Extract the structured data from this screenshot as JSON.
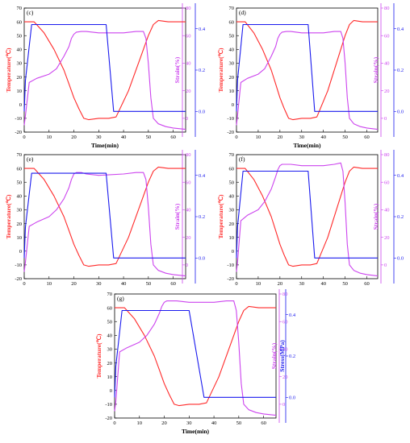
{
  "colors": {
    "temperature": "#ff2a2a",
    "strain": "#cc44ee",
    "stress": "#1a1aee",
    "axis": "#000000"
  },
  "chart_data": [
    {
      "type": "line",
      "panel_label": "(c)",
      "xlabel": "Time(min)",
      "xlim": [
        0,
        65
      ],
      "xticks": [
        0,
        10,
        20,
        30,
        40,
        50,
        60
      ],
      "axes": {
        "temperature": {
          "label": "Temperature(℃)",
          "ylim": [
            -20,
            70
          ],
          "ticks": [
            -20,
            -10,
            0,
            10,
            20,
            30,
            40,
            50,
            60,
            70
          ]
        },
        "strain": {
          "label": "Strain(%)",
          "ylim": [
            -10,
            80
          ],
          "ticks": [
            0,
            20,
            40,
            60,
            80
          ]
        },
        "stress": {
          "label": "",
          "ylim": [
            -0.1,
            0.5
          ],
          "ticks": [
            0.0,
            0.2,
            0.4
          ]
        }
      },
      "series": [
        {
          "axis": "temperature",
          "x": [
            0,
            4,
            8,
            12,
            16,
            18,
            20,
            22,
            24,
            26,
            30,
            34,
            37,
            42,
            47,
            50,
            52,
            54,
            58,
            65
          ],
          "y": [
            60,
            60,
            52,
            40,
            25,
            15,
            5,
            -3,
            -10,
            -11,
            -10,
            -10,
            -9,
            10,
            35,
            50,
            58,
            61,
            60,
            60
          ]
        },
        {
          "axis": "strain",
          "x": [
            0,
            0.5,
            2,
            5,
            10,
            13,
            16,
            18,
            19,
            20,
            21,
            23,
            25,
            30,
            40,
            45,
            48,
            49,
            50,
            51,
            52,
            54,
            57,
            60,
            65
          ],
          "y": [
            -5,
            2,
            26,
            29,
            32,
            36,
            45,
            52,
            58,
            61,
            62.5,
            63,
            63,
            62,
            62,
            63,
            63,
            58,
            40,
            15,
            0,
            -4,
            -6,
            -7,
            -8
          ]
        },
        {
          "axis": "stress",
          "x": [
            0,
            0.5,
            3,
            33,
            36,
            65
          ],
          "y": [
            0.0,
            0.15,
            0.42,
            0.42,
            0.0,
            0.0
          ]
        }
      ]
    },
    {
      "type": "line",
      "panel_label": "(d)",
      "xlabel": "Time(min)",
      "xlim": [
        0,
        65
      ],
      "xticks": [
        0,
        10,
        20,
        30,
        40,
        50,
        60
      ],
      "axes": {
        "temperature": {
          "label": "Temperature(℃)",
          "ylim": [
            -20,
            70
          ],
          "ticks": [
            -20,
            -10,
            0,
            10,
            20,
            30,
            40,
            50,
            60,
            70
          ]
        },
        "strain": {
          "label": "Strain(%)",
          "ylim": [
            -10,
            80
          ],
          "ticks": [
            0,
            20,
            40,
            60,
            80
          ]
        },
        "stress": {
          "label": "",
          "ylim": [
            -0.1,
            0.5
          ],
          "ticks": [
            0.0,
            0.2,
            0.4
          ]
        }
      },
      "series": [
        {
          "axis": "temperature",
          "x": [
            0,
            4,
            8,
            12,
            16,
            18,
            20,
            22,
            24,
            26,
            30,
            34,
            37,
            42,
            47,
            50,
            52,
            54,
            58,
            65
          ],
          "y": [
            60,
            60,
            52,
            40,
            25,
            15,
            5,
            -3,
            -10,
            -11,
            -10,
            -10,
            -9,
            10,
            35,
            50,
            58,
            61,
            60,
            60
          ]
        },
        {
          "axis": "strain",
          "x": [
            0,
            0.5,
            2,
            5,
            10,
            13,
            16,
            18,
            19,
            20,
            21,
            23,
            25,
            30,
            40,
            45,
            48,
            49,
            50,
            51,
            52,
            54,
            57,
            60,
            65
          ],
          "y": [
            -5,
            2,
            26,
            29,
            32,
            36,
            45,
            52,
            58,
            61,
            62.5,
            63,
            63,
            62,
            62,
            63,
            63,
            58,
            40,
            15,
            0,
            -4,
            -6,
            -7,
            -8
          ]
        },
        {
          "axis": "stress",
          "x": [
            0,
            0.5,
            3,
            33,
            36,
            65
          ],
          "y": [
            0.0,
            0.15,
            0.42,
            0.42,
            0.0,
            0.0
          ]
        }
      ]
    },
    {
      "type": "line",
      "panel_label": "(e)",
      "xlabel": "",
      "xlim": [
        0,
        65
      ],
      "xticks": [
        0,
        10,
        20,
        30,
        40,
        50,
        60
      ],
      "axes": {
        "temperature": {
          "label": "Temperature(℃)",
          "ylim": [
            -20,
            70
          ],
          "ticks": [
            -20,
            -10,
            0,
            10,
            20,
            30,
            40,
            50,
            60,
            70
          ]
        },
        "strain": {
          "label": "Strain(%)",
          "ylim": [
            -10,
            80
          ],
          "ticks": [
            0,
            20,
            40,
            60,
            80
          ]
        },
        "stress": {
          "label": "",
          "ylim": [
            -0.1,
            0.5
          ],
          "ticks": [
            0.0,
            0.2,
            0.4
          ]
        }
      },
      "series": [
        {
          "axis": "temperature",
          "x": [
            0,
            4,
            8,
            12,
            16,
            18,
            20,
            22,
            24,
            26,
            30,
            34,
            37,
            42,
            47,
            50,
            52,
            54,
            58,
            65
          ],
          "y": [
            60,
            60,
            52,
            40,
            25,
            15,
            5,
            -3,
            -10,
            -11,
            -10,
            -10,
            -9,
            10,
            35,
            50,
            58,
            61,
            60,
            60
          ]
        },
        {
          "axis": "strain",
          "x": [
            0,
            0.5,
            2,
            5,
            10,
            13,
            16,
            18,
            19,
            20,
            21,
            23,
            25,
            30,
            40,
            45,
            48,
            49,
            50,
            51,
            52,
            54,
            57,
            60,
            65
          ],
          "y": [
            -5,
            2,
            28,
            31,
            35,
            40,
            48,
            56,
            62,
            66,
            67,
            67,
            66,
            65,
            66,
            67,
            67,
            62,
            42,
            15,
            0,
            -4,
            -6,
            -7,
            -8
          ]
        },
        {
          "axis": "stress",
          "x": [
            0,
            0.5,
            3,
            33,
            36,
            65
          ],
          "y": [
            0.0,
            0.15,
            0.41,
            0.41,
            0.0,
            0.0
          ]
        }
      ]
    },
    {
      "type": "line",
      "panel_label": "(f)",
      "xlabel": "",
      "xlim": [
        0,
        65
      ],
      "xticks": [
        0,
        10,
        20,
        30,
        40,
        50,
        60
      ],
      "axes": {
        "temperature": {
          "label": "Temperature(℃)",
          "ylim": [
            -20,
            70
          ],
          "ticks": [
            -20,
            -10,
            0,
            10,
            20,
            30,
            40,
            50,
            60,
            70
          ]
        },
        "strain": {
          "label": "Strain(%)",
          "ylim": [
            -10,
            80
          ],
          "ticks": [
            0,
            20,
            40,
            60,
            80
          ]
        },
        "stress": {
          "label": "",
          "ylim": [
            -0.1,
            0.5
          ],
          "ticks": [
            0.0,
            0.2,
            0.4
          ]
        }
      },
      "series": [
        {
          "axis": "temperature",
          "x": [
            0,
            4,
            8,
            12,
            16,
            18,
            20,
            22,
            24,
            26,
            30,
            34,
            37,
            42,
            47,
            50,
            52,
            54,
            58,
            65
          ],
          "y": [
            60,
            60,
            52,
            40,
            25,
            15,
            5,
            -3,
            -10,
            -11,
            -10,
            -10,
            -9,
            10,
            35,
            50,
            58,
            61,
            60,
            60
          ]
        },
        {
          "axis": "strain",
          "x": [
            0,
            0.5,
            2,
            5,
            10,
            13,
            16,
            18,
            19,
            20,
            21,
            23,
            25,
            30,
            40,
            45,
            48,
            49,
            50,
            51,
            52,
            54,
            57,
            60,
            65
          ],
          "y": [
            -5,
            2,
            32,
            36,
            40,
            46,
            55,
            64,
            69,
            72,
            73,
            73,
            73,
            72,
            72,
            73,
            74,
            68,
            45,
            15,
            0,
            -4,
            -6,
            -7,
            -8
          ]
        },
        {
          "axis": "stress",
          "x": [
            0,
            0.5,
            3,
            33,
            36,
            65
          ],
          "y": [
            0.0,
            0.15,
            0.42,
            0.42,
            0.0,
            0.0
          ]
        }
      ]
    },
    {
      "type": "line",
      "panel_label": "(g)",
      "xlabel": "Time(min)",
      "xlim": [
        0,
        65
      ],
      "xticks": [
        0,
        10,
        20,
        30,
        40,
        50,
        60
      ],
      "axes": {
        "temperature": {
          "label": "Temperature(℃)",
          "ylim": [
            -20,
            70
          ],
          "ticks": [
            -20,
            -10,
            0,
            10,
            20,
            30,
            40,
            50,
            60,
            70
          ]
        },
        "strain": {
          "label": "Strain(%)",
          "ylim": [
            -10,
            80
          ],
          "ticks": [
            0,
            20,
            40,
            60,
            80
          ]
        },
        "stress": {
          "label": "Stress(MPa)",
          "ylim": [
            -0.1,
            0.5
          ],
          "ticks": [
            0.0,
            0.2,
            0.4
          ]
        }
      },
      "series": [
        {
          "axis": "temperature",
          "x": [
            0,
            4,
            8,
            12,
            16,
            18,
            20,
            22,
            24,
            26,
            30,
            34,
            37,
            42,
            47,
            50,
            52,
            54,
            58,
            65
          ],
          "y": [
            60,
            60,
            52,
            40,
            25,
            15,
            5,
            -3,
            -10,
            -11,
            -10,
            -10,
            -9,
            10,
            35,
            50,
            58,
            61,
            60,
            60
          ]
        },
        {
          "axis": "strain",
          "x": [
            0,
            0.5,
            2,
            5,
            10,
            13,
            16,
            18,
            19,
            20,
            21,
            23,
            25,
            30,
            40,
            45,
            48,
            49,
            50,
            51,
            52,
            54,
            57,
            60,
            65
          ],
          "y": [
            -5,
            2,
            38,
            41,
            45,
            50,
            58,
            66,
            71,
            74,
            75,
            75,
            75,
            74,
            74,
            75,
            75,
            68,
            45,
            15,
            0,
            -4,
            -6,
            -7,
            -8
          ]
        },
        {
          "axis": "stress",
          "x": [
            0,
            0.5,
            3,
            30,
            36,
            65
          ],
          "y": [
            0.0,
            0.15,
            0.42,
            0.42,
            0.0,
            0.0
          ]
        }
      ]
    }
  ]
}
